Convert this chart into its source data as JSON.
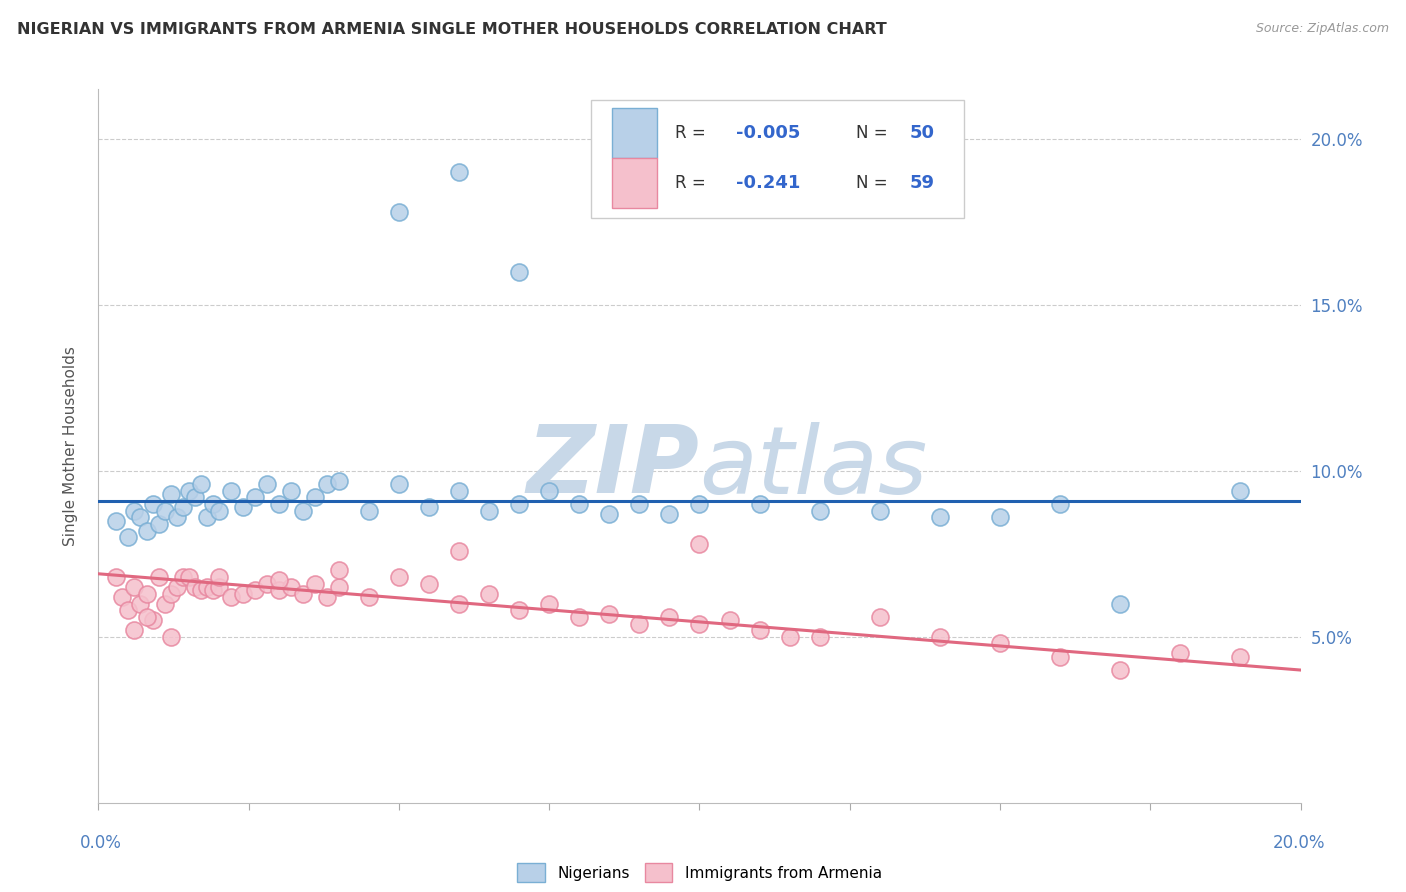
{
  "title": "NIGERIAN VS IMMIGRANTS FROM ARMENIA SINGLE MOTHER HOUSEHOLDS CORRELATION CHART",
  "source": "Source: ZipAtlas.com",
  "ylabel": "Single Mother Households",
  "xlim": [
    0.0,
    0.2
  ],
  "ylim": [
    0.0,
    0.215
  ],
  "ytick_values": [
    0.05,
    0.1,
    0.15,
    0.2
  ],
  "ytick_labels": [
    "5.0%",
    "10.0%",
    "15.0%",
    "20.0%"
  ],
  "nigerian_color": "#b8d0e8",
  "nigerian_edge": "#7aafd4",
  "armenia_color": "#f5c0cc",
  "armenia_edge": "#e888a0",
  "trendline_nigerian": "#2060b0",
  "trendline_armenia": "#e06880",
  "watermark_color": "#c8d8e8",
  "grid_color": "#cccccc",
  "background": "#ffffff",
  "nigerian_x": [
    0.003,
    0.005,
    0.006,
    0.007,
    0.008,
    0.009,
    0.01,
    0.011,
    0.012,
    0.013,
    0.014,
    0.015,
    0.016,
    0.017,
    0.018,
    0.019,
    0.02,
    0.022,
    0.024,
    0.026,
    0.028,
    0.03,
    0.032,
    0.034,
    0.036,
    0.038,
    0.04,
    0.045,
    0.05,
    0.055,
    0.06,
    0.065,
    0.07,
    0.075,
    0.08,
    0.085,
    0.09,
    0.095,
    0.1,
    0.11,
    0.12,
    0.13,
    0.14,
    0.15,
    0.16,
    0.05,
    0.06,
    0.07,
    0.17,
    0.19
  ],
  "nigerian_y": [
    0.085,
    0.08,
    0.088,
    0.086,
    0.082,
    0.09,
    0.084,
    0.088,
    0.093,
    0.086,
    0.089,
    0.094,
    0.092,
    0.096,
    0.086,
    0.09,
    0.088,
    0.094,
    0.089,
    0.092,
    0.096,
    0.09,
    0.094,
    0.088,
    0.092,
    0.096,
    0.097,
    0.088,
    0.096,
    0.089,
    0.094,
    0.088,
    0.09,
    0.094,
    0.09,
    0.087,
    0.09,
    0.087,
    0.09,
    0.09,
    0.088,
    0.088,
    0.086,
    0.086,
    0.09,
    0.178,
    0.19,
    0.16,
    0.06,
    0.094
  ],
  "armenia_x": [
    0.003,
    0.004,
    0.005,
    0.006,
    0.007,
    0.008,
    0.009,
    0.01,
    0.011,
    0.012,
    0.013,
    0.014,
    0.015,
    0.016,
    0.017,
    0.018,
    0.019,
    0.02,
    0.022,
    0.024,
    0.026,
    0.028,
    0.03,
    0.032,
    0.034,
    0.036,
    0.038,
    0.04,
    0.045,
    0.05,
    0.055,
    0.06,
    0.065,
    0.07,
    0.075,
    0.08,
    0.085,
    0.09,
    0.095,
    0.1,
    0.105,
    0.11,
    0.115,
    0.12,
    0.13,
    0.14,
    0.15,
    0.16,
    0.17,
    0.18,
    0.006,
    0.008,
    0.012,
    0.02,
    0.03,
    0.04,
    0.1,
    0.06,
    0.19
  ],
  "armenia_y": [
    0.068,
    0.062,
    0.058,
    0.065,
    0.06,
    0.063,
    0.055,
    0.068,
    0.06,
    0.063,
    0.065,
    0.068,
    0.068,
    0.065,
    0.064,
    0.065,
    0.064,
    0.065,
    0.062,
    0.063,
    0.064,
    0.066,
    0.064,
    0.065,
    0.063,
    0.066,
    0.062,
    0.065,
    0.062,
    0.068,
    0.066,
    0.06,
    0.063,
    0.058,
    0.06,
    0.056,
    0.057,
    0.054,
    0.056,
    0.054,
    0.055,
    0.052,
    0.05,
    0.05,
    0.056,
    0.05,
    0.048,
    0.044,
    0.04,
    0.045,
    0.052,
    0.056,
    0.05,
    0.068,
    0.067,
    0.07,
    0.078,
    0.076,
    0.044
  ],
  "nig_trendline_start_y": 0.091,
  "nig_trendline_end_y": 0.091,
  "arm_trendline_start_y": 0.069,
  "arm_trendline_end_y": 0.04,
  "legend_r1": "R = -0.005",
  "legend_r2": "R =  -0.241",
  "legend_n1": "N = 50",
  "legend_n2": "N = 59"
}
